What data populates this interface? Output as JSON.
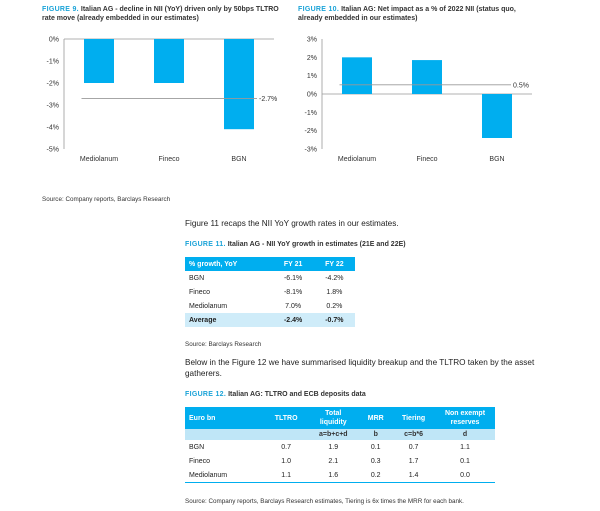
{
  "fig9": {
    "num": "FIGURE 9.",
    "title_line1": "Italian AG - decline in NII (YoY) driven only by 50bps TLTRO",
    "title_line2": "rate move (already embedded in our estimates)"
  },
  "fig10": {
    "num": "FIGURE 10.",
    "title_line1": "Italian AG: Net impact as a % of 2022 NII (status quo,",
    "title_line2": "already embedded in our estimates)"
  },
  "chart_data": [
    {
      "type": "bar",
      "categories": [
        "Mediolanum",
        "Fineco",
        "BGN"
      ],
      "values": [
        -2.0,
        -2.0,
        -4.1
      ],
      "ylim": [
        -5,
        0
      ],
      "yticks": [
        "0%",
        "-1%",
        "-2%",
        "-3%",
        "-4%",
        "-5%"
      ],
      "reference_line": -2.7,
      "reference_label": "-2.7%",
      "color": "#00aeef",
      "title": "",
      "xlabel": "",
      "ylabel": ""
    },
    {
      "type": "bar",
      "categories": [
        "Mediolanum",
        "Fineco",
        "BGN"
      ],
      "values": [
        2.0,
        1.85,
        -2.4
      ],
      "ylim": [
        -3,
        3
      ],
      "yticks": [
        "3%",
        "2%",
        "1%",
        "0%",
        "-1%",
        "-2%",
        "-3%"
      ],
      "reference_line": 0.5,
      "reference_label": "0.5%",
      "color": "#00aeef",
      "title": "",
      "xlabel": "",
      "ylabel": ""
    }
  ],
  "source_charts": "Source: Company reports, Barclays Research",
  "intro_text": "Figure 11 recaps the NII YoY growth rates in our estimates.",
  "fig11": {
    "num": "FIGURE 11.",
    "title": "Italian AG - NII YoY growth in estimates (21E and 22E)",
    "headers": [
      "% growth, YoY",
      "FY 21",
      "FY 22"
    ],
    "rows": [
      [
        "BGN",
        "-6.1%",
        "-4.2%"
      ],
      [
        "Fineco",
        "-8.1%",
        "1.8%"
      ],
      [
        "Mediolanum",
        "7.0%",
        "0.2%"
      ]
    ],
    "avg_row": [
      "Average",
      "-2.4%",
      "-0.7%"
    ],
    "source": "Source: Barclays Research"
  },
  "para2_line1": "Below in the Figure 12 we have summarised liquidity breakup and the TLTRO taken by the asset",
  "para2_line2": "gatherers.",
  "fig12": {
    "num": "FIGURE 12.",
    "title": "Italian AG: TLTRO and ECB deposits data",
    "headers": [
      "Euro bn",
      "TLTRO",
      "Total liquidity",
      "MRR",
      "Tiering",
      "Non exempt reserves"
    ],
    "subheaders": [
      "",
      "",
      "a=b+c+d",
      "b",
      "c=b*6",
      "d"
    ],
    "rows": [
      [
        "BGN",
        "0.7",
        "1.9",
        "0.1",
        "0.7",
        "1.1"
      ],
      [
        "Fineco",
        "1.0",
        "2.1",
        "0.3",
        "1.7",
        "0.1"
      ],
      [
        "Mediolanum",
        "1.1",
        "1.6",
        "0.2",
        "1.4",
        "0.0"
      ]
    ],
    "source": "Source: Company reports, Barclays Research estimates, Tiering is 6x times the MRR for each bank."
  }
}
